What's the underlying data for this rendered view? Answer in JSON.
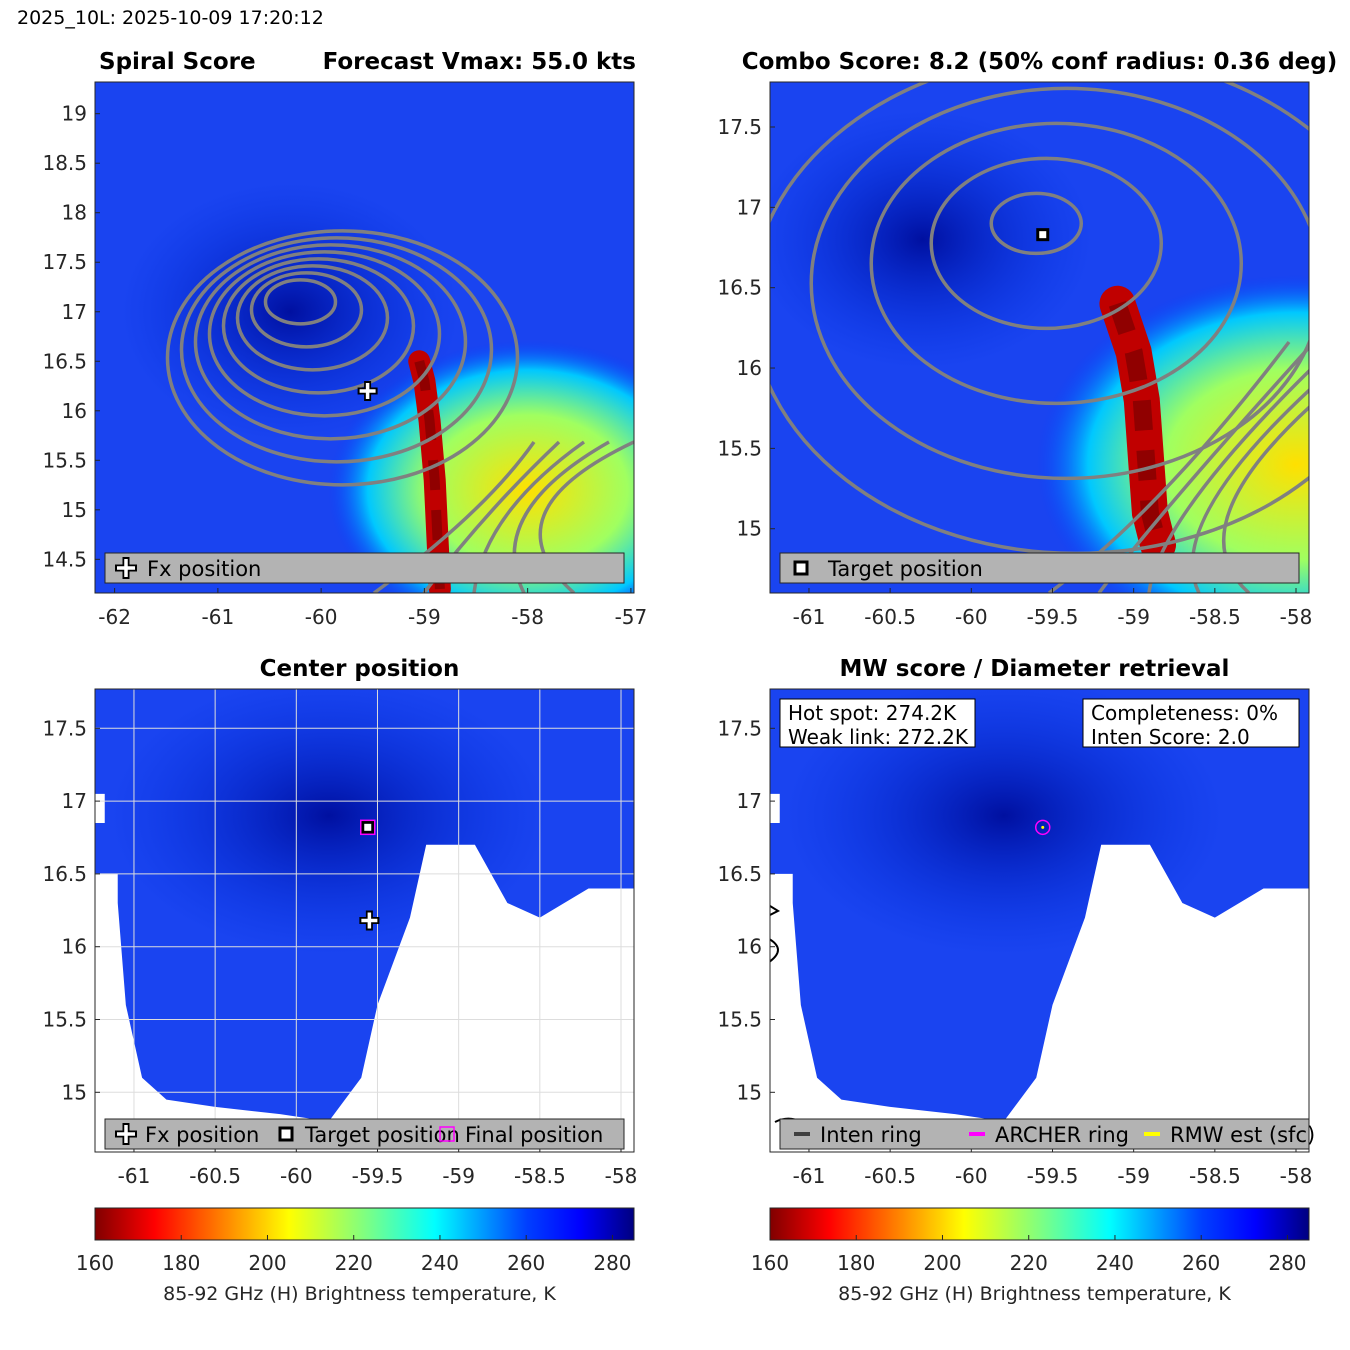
{
  "header": {
    "title": "2025_10L: 2025-10-09 17:20:12"
  },
  "chart_data": [
    {
      "type": "heatmap",
      "title_left": "Spiral Score",
      "title_right": "Forecast Vmax: 55.0 kts",
      "xlim": [
        -62.19,
        -56.97
      ],
      "ylim": [
        14.16,
        19.32
      ],
      "xticks": [
        -62,
        -61,
        -60,
        -59,
        -58,
        -57
      ],
      "yticks": [
        14.5,
        15,
        15.5,
        16,
        16.5,
        17,
        17.5,
        18,
        18.5,
        19
      ],
      "markers": [
        {
          "label": "Fx position",
          "symbol": "plus",
          "lon": -59.55,
          "lat": 16.2
        }
      ],
      "legend": [
        "Fx position"
      ],
      "contours": "gray spiral contours"
    },
    {
      "type": "heatmap",
      "title": "Combo Score: 8.2  (50% conf radius: 0.36 deg)",
      "xlim": [
        -61.24,
        -57.92
      ],
      "ylim": [
        14.6,
        17.78
      ],
      "xticks": [
        -61,
        -60.5,
        -60,
        -59.5,
        -59,
        -58.5,
        -58
      ],
      "yticks": [
        15,
        15.5,
        16,
        16.5,
        17,
        17.5
      ],
      "markers": [
        {
          "label": "Target position",
          "symbol": "square",
          "lon": -59.56,
          "lat": 16.83
        }
      ],
      "legend": [
        "Target position"
      ]
    },
    {
      "type": "heatmap",
      "title": "Center position",
      "xlim": [
        -61.24,
        -57.92
      ],
      "ylim": [
        14.59,
        17.77
      ],
      "xticks": [
        -61,
        -60.5,
        -60,
        -59.5,
        -59,
        -58.5,
        -58
      ],
      "yticks": [
        15,
        15.5,
        16,
        16.5,
        17,
        17.5
      ],
      "grid": true,
      "markers": [
        {
          "label": "Fx position",
          "symbol": "plus",
          "lon": -59.55,
          "lat": 16.18
        },
        {
          "label": "Target position",
          "symbol": "square",
          "lon": -59.56,
          "lat": 16.82
        },
        {
          "label": "Final position",
          "symbol": "magenta-square",
          "lon": -59.56,
          "lat": 16.82
        }
      ],
      "legend": [
        "Fx position",
        "Target position",
        "Final position"
      ]
    },
    {
      "type": "heatmap",
      "title": "MW score / Diameter retrieval",
      "xlim": [
        -61.24,
        -57.92
      ],
      "ylim": [
        14.59,
        17.77
      ],
      "xticks": [
        -61,
        -60.5,
        -60,
        -59.5,
        -59,
        -58.5,
        -58
      ],
      "yticks": [
        15,
        15.5,
        16,
        16.5,
        17,
        17.5
      ],
      "annotations": {
        "left": [
          "Hot spot: 274.2K",
          "Weak link: 272.2K"
        ],
        "right": [
          "Completeness: 0%",
          "Inten Score: 2.0"
        ]
      },
      "legend": [
        {
          "label": "Inten ring",
          "color": "#404040"
        },
        {
          "label": "ARCHER ring",
          "color": "#ff00ff"
        },
        {
          "label": "RMW est (sfc)",
          "color": "#ffff00"
        }
      ]
    }
  ],
  "colorbar": {
    "colormap": "jet reversed",
    "range": [
      160,
      285
    ],
    "ticks": [
      160,
      180,
      200,
      220,
      240,
      260,
      280
    ],
    "label": "85-92 GHz (H) Brightness temperature, K"
  },
  "colors": {
    "low": "#800000",
    "mid": "#00ffff",
    "high": "#000080",
    "base": "#1a3ff0",
    "contour": "#808080"
  }
}
